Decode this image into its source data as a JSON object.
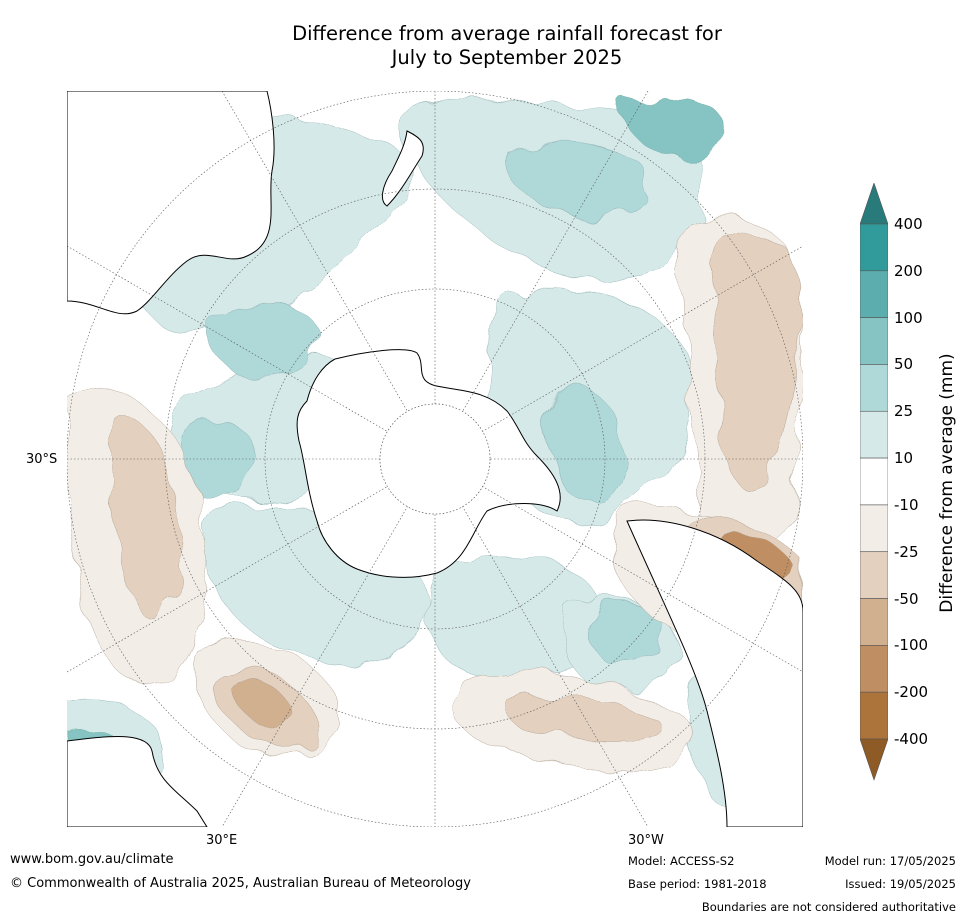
{
  "title_line1": "Difference from average rainfall forecast for",
  "title_line2": "July to September 2025",
  "map": {
    "lat_label": "30°S",
    "lon_label_east": "30°E",
    "lon_label_west": "30°W",
    "ocean_color": "#ffffff",
    "land_outline_color": "#000000",
    "grid_color": "#555555"
  },
  "legend": {
    "title": "Difference from average (mm)",
    "ticks": [
      "400",
      "200",
      "100",
      "50",
      "25",
      "10",
      "-10",
      "-25",
      "-50",
      "-100",
      "-200",
      "-400"
    ],
    "colors": [
      "#297b7b",
      "#319b9b",
      "#5caeae",
      "#86c3c3",
      "#afd8d8",
      "#d6e9e9",
      "#ffffff",
      "#f2ede7",
      "#e3d0bf",
      "#d1b090",
      "#bf8f63",
      "#ac733b",
      "#8e5a25"
    ]
  },
  "footer": {
    "website": "www.bom.gov.au/climate",
    "copyright": "© Commonwealth of Australia 2025, Australian Bureau of Meteorology",
    "model": "Model: ACCESS-S2",
    "base_period": "Base period: 1981-2018",
    "model_run": "Model run: 17/05/2025",
    "issued": "Issued: 19/05/2025",
    "disclaimer": "Boundaries are not considered authoritative"
  }
}
